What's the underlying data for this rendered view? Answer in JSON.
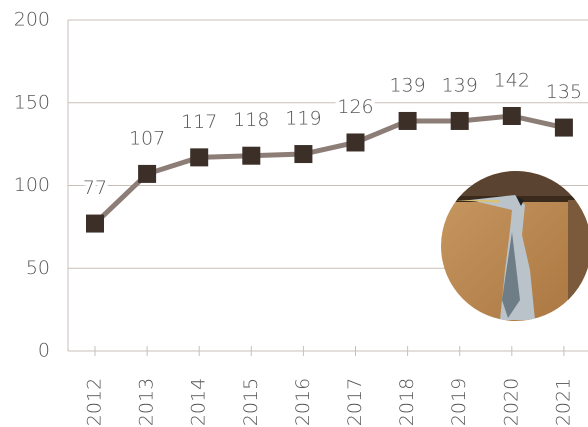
{
  "chart_data": {
    "type": "line",
    "categories": [
      "2012",
      "2013",
      "2014",
      "2015",
      "2016",
      "2017",
      "2018",
      "2019",
      "2020",
      "2021"
    ],
    "values": [
      77,
      107,
      117,
      118,
      119,
      126,
      139,
      139,
      142,
      135
    ],
    "color": "#8c7d77",
    "marker_color": "#3b2f28",
    "ylim": [
      0,
      200
    ],
    "yticks": [
      0,
      50,
      100,
      150,
      200
    ],
    "grid": true
  }
}
